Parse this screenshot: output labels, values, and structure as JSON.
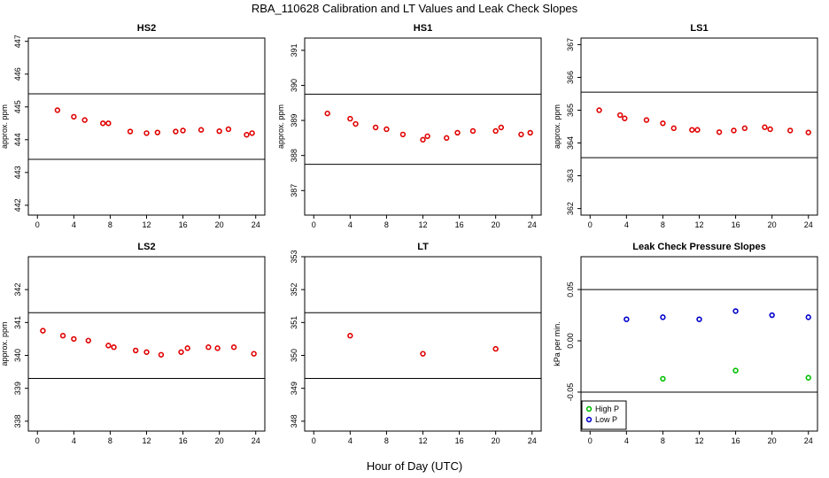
{
  "figure": {
    "title": "RBA_110628  Calibration and LT Values and Leak Check Slopes",
    "xlabel": "Hour of Day (UTC)"
  },
  "chart_data": [
    {
      "type": "scatter",
      "title": "HS2",
      "ylabel": "approx. ppm",
      "xlim": [
        -1,
        25
      ],
      "ylim": [
        441.7,
        447.1
      ],
      "xticks": [
        0,
        4,
        8,
        12,
        16,
        20,
        24
      ],
      "yticks": [
        442,
        443,
        444,
        445,
        446,
        447
      ],
      "hlines": [
        445.4,
        443.4
      ],
      "series": [
        {
          "color": "#e00000",
          "marker": "circle",
          "x": [
            2.2,
            4.0,
            5.2,
            7.2,
            7.8,
            10.2,
            12.0,
            13.2,
            15.2,
            16.0,
            18.0,
            20.0,
            21.0,
            23.0,
            23.6
          ],
          "y": [
            444.9,
            444.7,
            444.6,
            444.5,
            444.5,
            444.25,
            444.2,
            444.22,
            444.25,
            444.28,
            444.3,
            444.26,
            444.32,
            444.15,
            444.2
          ]
        }
      ]
    },
    {
      "type": "scatter",
      "title": "HS1",
      "ylabel": "approx. ppm",
      "xlim": [
        -1,
        25
      ],
      "ylim": [
        386.3,
        391.35
      ],
      "xticks": [
        0,
        4,
        8,
        12,
        16,
        20,
        24
      ],
      "yticks": [
        387,
        388,
        389,
        390,
        391
      ],
      "hlines": [
        389.75,
        387.75
      ],
      "series": [
        {
          "color": "#e00000",
          "marker": "circle",
          "x": [
            1.5,
            4.0,
            4.6,
            6.8,
            8.0,
            9.8,
            12.0,
            12.5,
            14.6,
            15.8,
            17.5,
            20.0,
            20.6,
            22.8,
            23.8
          ],
          "y": [
            389.2,
            389.05,
            388.9,
            388.8,
            388.75,
            388.6,
            388.45,
            388.55,
            388.5,
            388.65,
            388.7,
            388.7,
            388.8,
            388.6,
            388.65
          ]
        }
      ]
    },
    {
      "type": "scatter",
      "title": "LS1",
      "ylabel": "approx. ppm",
      "xlim": [
        -1,
        25
      ],
      "ylim": [
        361.8,
        367.2
      ],
      "xticks": [
        0,
        4,
        8,
        12,
        16,
        20,
        24
      ],
      "yticks": [
        362,
        363,
        364,
        365,
        366,
        367
      ],
      "hlines": [
        365.55,
        363.55
      ],
      "series": [
        {
          "color": "#e00000",
          "marker": "circle",
          "x": [
            1.0,
            3.3,
            3.8,
            6.2,
            8.0,
            9.2,
            11.2,
            11.8,
            14.2,
            15.8,
            17.0,
            19.2,
            19.8,
            22.0,
            24.0
          ],
          "y": [
            365.0,
            364.85,
            364.75,
            364.7,
            364.6,
            364.45,
            364.4,
            364.4,
            364.33,
            364.38,
            364.45,
            364.48,
            364.42,
            364.38,
            364.32
          ]
        }
      ]
    },
    {
      "type": "scatter",
      "title": "LS2",
      "ylabel": "approx. ppm",
      "xlim": [
        -1,
        25
      ],
      "ylim": [
        337.7,
        343.0
      ],
      "xticks": [
        0,
        4,
        8,
        12,
        16,
        20,
        24
      ],
      "yticks": [
        338,
        339,
        340,
        341,
        342
      ],
      "hlines": [
        341.3,
        339.3
      ],
      "series": [
        {
          "color": "#e00000",
          "marker": "circle",
          "x": [
            0.6,
            2.8,
            4.0,
            5.6,
            7.8,
            8.4,
            10.8,
            12.0,
            13.6,
            15.8,
            16.5,
            18.8,
            19.8,
            21.6,
            23.8
          ],
          "y": [
            340.75,
            340.6,
            340.5,
            340.45,
            340.3,
            340.25,
            340.15,
            340.1,
            340.02,
            340.1,
            340.22,
            340.25,
            340.22,
            340.25,
            340.05
          ]
        }
      ]
    },
    {
      "type": "scatter",
      "title": "LT",
      "ylabel": "",
      "xlim": [
        -1,
        25
      ],
      "ylim": [
        347.7,
        353.0
      ],
      "xticks": [
        0,
        4,
        8,
        12,
        16,
        20,
        24
      ],
      "yticks": [
        348,
        349,
        350,
        351,
        352,
        353
      ],
      "hlines": [
        351.3,
        349.3
      ],
      "series": [
        {
          "color": "#e00000",
          "marker": "circle",
          "x": [
            4.0,
            12.0,
            20.0
          ],
          "y": [
            350.6,
            350.05,
            350.2
          ]
        }
      ]
    },
    {
      "type": "scatter",
      "title": "Leak Check Pressure Slopes",
      "ylabel": "kPa per min.",
      "xlim": [
        -1,
        25
      ],
      "ylim": [
        -0.088,
        0.082
      ],
      "xticks": [
        0,
        4,
        8,
        12,
        16,
        20,
        24
      ],
      "yticks": [
        -0.05,
        0.0,
        0.05
      ],
      "ytick_labels": [
        "-0.05",
        "0.00",
        "0.05"
      ],
      "hlines": [
        0.05,
        -0.05
      ],
      "legend": "bottom-left",
      "series": [
        {
          "name": "High P",
          "color": "#00c000",
          "marker": "circle",
          "x": [
            8,
            16,
            24
          ],
          "y": [
            -0.037,
            -0.029,
            -0.036
          ]
        },
        {
          "name": "Low P",
          "color": "#0000cc",
          "marker": "circle",
          "x": [
            4,
            8,
            12,
            16,
            20,
            24
          ],
          "y": [
            0.021,
            0.023,
            0.021,
            0.029,
            0.025,
            0.023
          ]
        }
      ]
    }
  ]
}
